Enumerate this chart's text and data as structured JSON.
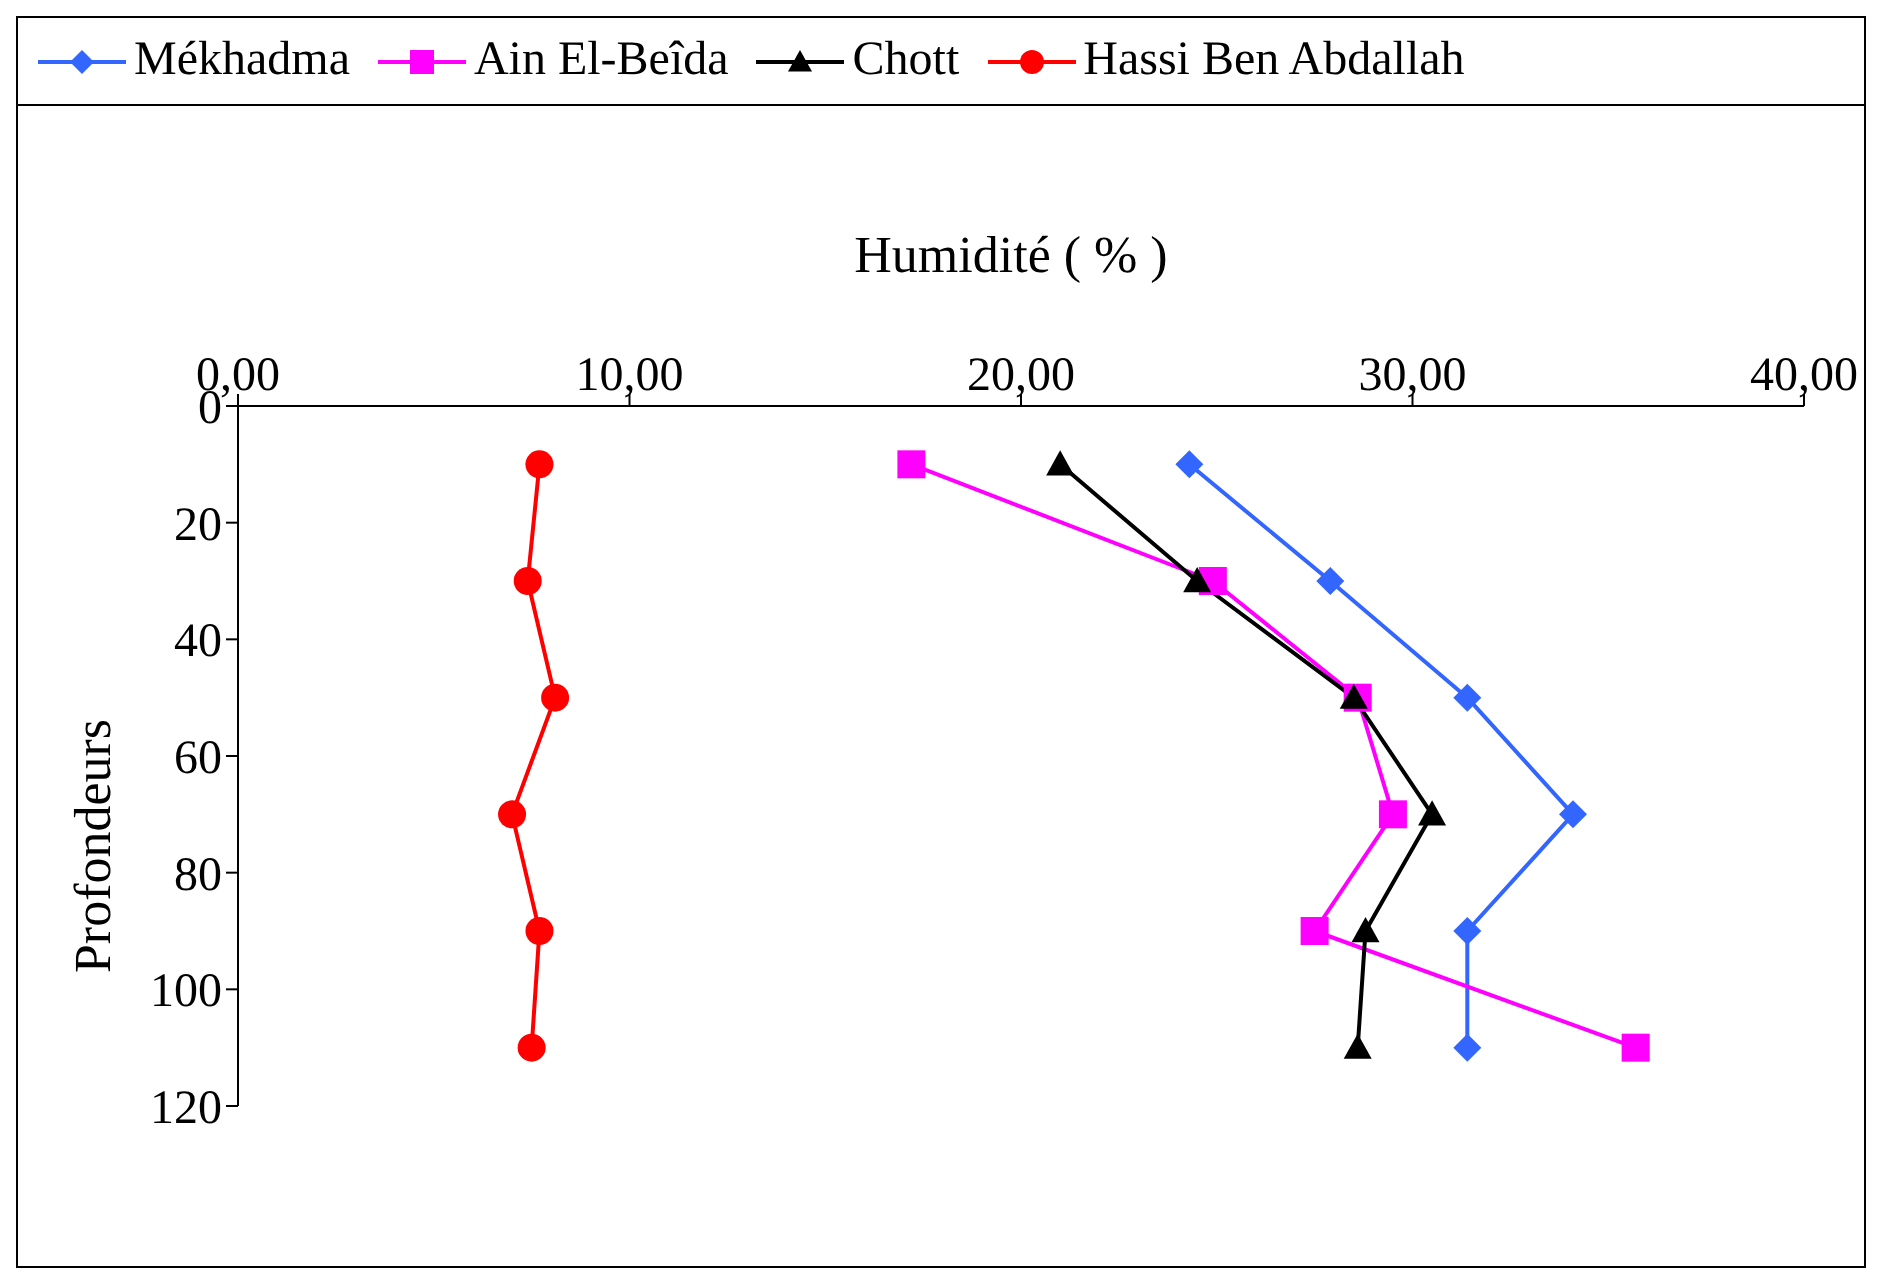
{
  "chart_data": {
    "type": "line",
    "xlabel": "Humidité ( % )",
    "ylabel": "Profondeurs",
    "xlim": [
      0,
      40
    ],
    "xticks": [
      {
        "value": 0,
        "label": "0,00"
      },
      {
        "value": 10,
        "label": "10,00"
      },
      {
        "value": 20,
        "label": "20,00"
      },
      {
        "value": 30,
        "label": "30,00"
      },
      {
        "value": 40,
        "label": "40,00"
      }
    ],
    "ylim": [
      120,
      0
    ],
    "yticks": [
      0,
      20,
      40,
      60,
      80,
      100,
      120
    ],
    "grid": false,
    "legend": "top",
    "line_style": "solid",
    "series": [
      {
        "name": "Mékhadma",
        "color": "#3366ff",
        "marker": "diamond",
        "x": [
          24.3,
          27.9,
          31.4,
          34.1,
          31.4,
          31.4
        ],
        "values": [
          10,
          30,
          50,
          70,
          90,
          110
        ]
      },
      {
        "name": "Ain El-Beîda",
        "color": "#ff00ff",
        "marker": "square",
        "x": [
          17.2,
          24.9,
          28.6,
          29.5,
          27.5,
          35.7
        ],
        "values": [
          10,
          30,
          50,
          70,
          90,
          110
        ]
      },
      {
        "name": "Chott",
        "color": "#000000",
        "marker": "triangle",
        "x": [
          21.0,
          24.5,
          28.5,
          30.5,
          28.8,
          28.6
        ],
        "values": [
          10,
          30,
          50,
          70,
          90,
          110
        ]
      },
      {
        "name": "Hassi Ben Abdallah",
        "color": "#ff0000",
        "marker": "circle",
        "x": [
          7.7,
          7.4,
          8.1,
          7.0,
          7.7,
          7.5
        ],
        "values": [
          10,
          30,
          50,
          70,
          90,
          110
        ]
      }
    ]
  }
}
